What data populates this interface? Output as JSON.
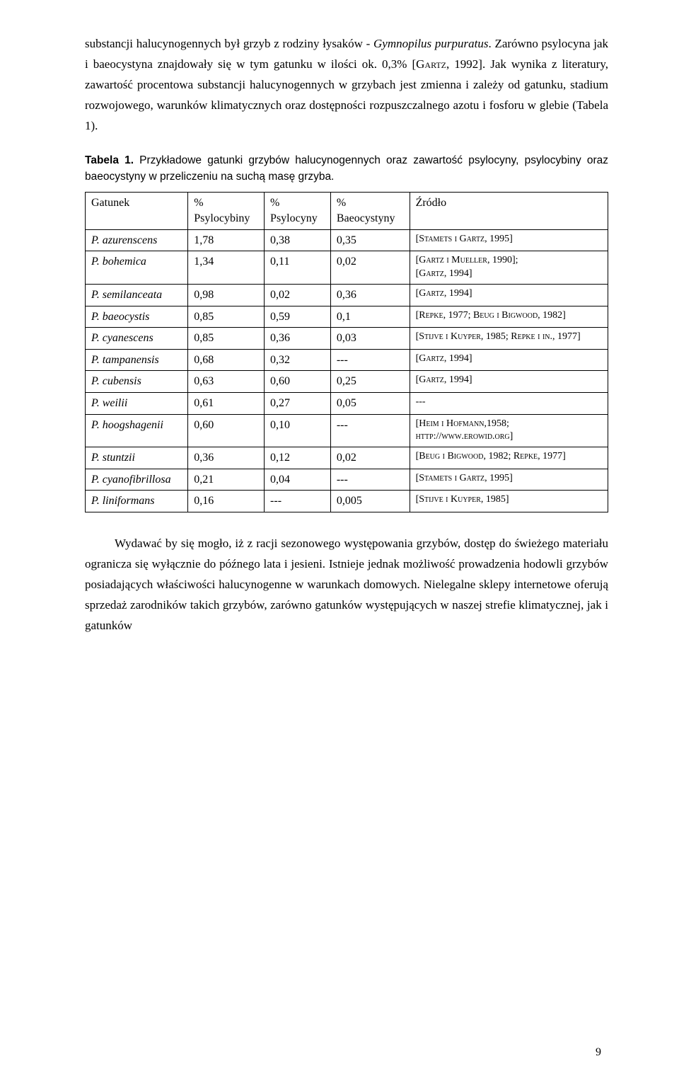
{
  "paragraph1": {
    "line1a": "substancji halucynogennych był grzyb z rodziny łysaków - ",
    "line1_italic": "Gymnopilus purpuratus",
    "line1b": ". Zarówno psylocyna jak i baeocystyna znajdowały się w tym gatunku w ilości ok. 0,3% [",
    "line1_sc": "Gartz",
    "line1c": ", 1992]. Jak wynika z literatury, zawartość procentowa substancji halucynogennych w grzybach jest zmienna i zależy od gatunku, stadium rozwojowego, warunków klimatycznych oraz dostępności rozpuszczalnego azotu i fosforu w glebie (Tabela 1)."
  },
  "table_caption": {
    "label": "Tabela 1.",
    "text": " Przykładowe gatunki grzybów halucynogennych oraz zawartość psylocyny, psylocybiny oraz baeocystyny w przeliczeniu na suchą masę grzyba."
  },
  "table": {
    "headers": {
      "gatunek": "Gatunek",
      "psylocybiny": "Psylocybiny",
      "psylocyny": "Psylocyny",
      "baeocystyny": "Baeocystyny",
      "zrodlo": "Źródło",
      "percent": "%"
    },
    "rows": [
      {
        "sp": "P. azurenscens",
        "a": "1,78",
        "b": "0,38",
        "c": "0,35",
        "src": "[Stamets i Gartz, 1995]"
      },
      {
        "sp": "P. bohemica",
        "a": "1,34",
        "b": "0,11",
        "c": "0,02",
        "src1": "[Gartz i Mueller, 1990];",
        "src2": "[Gartz, 1994]"
      },
      {
        "sp": "P. semilanceata",
        "a": "0,98",
        "b": "0,02",
        "c": "0,36",
        "src": "[Gartz, 1994]"
      },
      {
        "sp": "P. baeocystis",
        "a": "0,85",
        "b": "0,59",
        "c": "0,1",
        "src": "[Repke, 1977; Beug i Bigwood, 1982]"
      },
      {
        "sp": "P. cyanescens",
        "a": "0,85",
        "b": "0,36",
        "c": "0,03",
        "src": "[Stijve i Kuyper, 1985; Repke i in., 1977]"
      },
      {
        "sp": "P. tampanensis",
        "a": "0,68",
        "b": "0,32",
        "c": "---",
        "src": "[Gartz, 1994]"
      },
      {
        "sp": "P. cubensis",
        "a": "0,63",
        "b": "0,60",
        "c": "0,25",
        "src": "[Gartz, 1994]"
      },
      {
        "sp": "P. weilii",
        "a": "0,61",
        "b": "0,27",
        "c": "0,05",
        "src": "---"
      },
      {
        "sp": "P. hoogshagenii",
        "a": "0,60",
        "b": "0,10",
        "c": "---",
        "src1": "[Heim i Hofmann,1958;",
        "src2": "http://www.erowid.org]"
      },
      {
        "sp": "P. stuntzii",
        "a": "0,36",
        "b": "0,12",
        "c": "0,02",
        "src": "[Beug i Bigwood, 1982; Repke, 1977]"
      },
      {
        "sp": "P. cyanofibrillosa",
        "a": "0,21",
        "b": "0,04",
        "c": "---",
        "src": "[Stamets i Gartz, 1995]"
      },
      {
        "sp": "P. liniformans",
        "a": "0,16",
        "b": "---",
        "c": "0,005",
        "src": "[Stijve i Kuyper, 1985]"
      }
    ]
  },
  "paragraph2": "Wydawać by się mogło, iż z racji sezonowego występowania grzybów, dostęp do świeżego materiału ogranicza się wyłącznie do późnego lata i jesieni. Istnieje jednak możliwość prowadzenia hodowli grzybów posiadających właściwości halucynogenne w warunkach domowych. Nielegalne sklepy internetowe oferują sprzedaż zarodników takich grzybów, zarówno gatunków występujących w naszej strefie klimatycznej, jak i gatunków",
  "page_number": "9"
}
